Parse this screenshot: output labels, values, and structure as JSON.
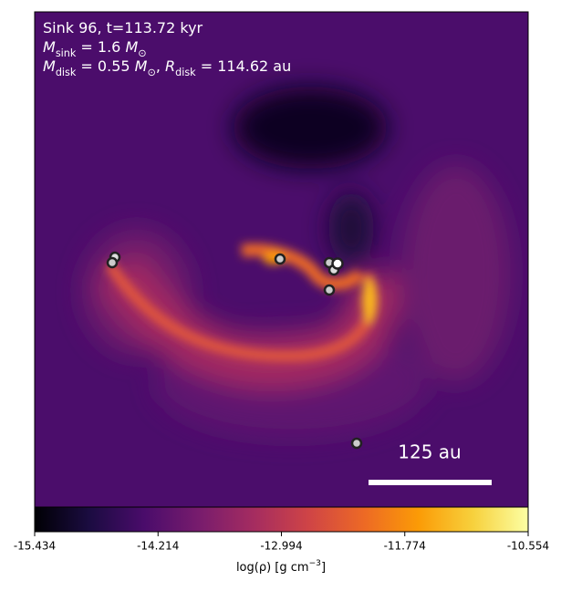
{
  "chart_data": {
    "type": "image",
    "annotations": [
      [
        {
          "text": "Sink 96, t=113.72 kyr"
        }
      ],
      [
        {
          "text": "M",
          "italic": true
        },
        {
          "text": "sink",
          "sub": true
        },
        {
          "text": " = 1.6 "
        },
        {
          "text": "M",
          "italic": true
        },
        {
          "text": "⊙",
          "sub": true
        }
      ],
      [
        {
          "text": "M",
          "italic": true
        },
        {
          "text": "disk",
          "sub": true
        },
        {
          "text": " = 0.55 "
        },
        {
          "text": "M",
          "italic": true
        },
        {
          "text": "⊙",
          "sub": true
        },
        {
          "text": ", "
        },
        {
          "text": "R",
          "italic": true
        },
        {
          "text": "disk",
          "sub": true
        },
        {
          "text": " = 114.62 au"
        }
      ]
    ],
    "scale_bar_label": "125 au",
    "colorbar": {
      "label": [
        {
          "text": "log(ρ) [g cm"
        },
        {
          "text": "−3",
          "sup": true
        },
        {
          "text": "]"
        }
      ],
      "clim": [
        -15.434,
        -10.554
      ],
      "cticks": [
        -15.434,
        -14.214,
        -12.994,
        -11.774,
        -10.554
      ],
      "colormap": [
        "#000004",
        "#1b0c41",
        "#4a0c6b",
        "#781c6d",
        "#a52c60",
        "#cf4446",
        "#ed6925",
        "#fb9b06",
        "#f7d13d",
        "#fcffa4"
      ]
    }
  }
}
